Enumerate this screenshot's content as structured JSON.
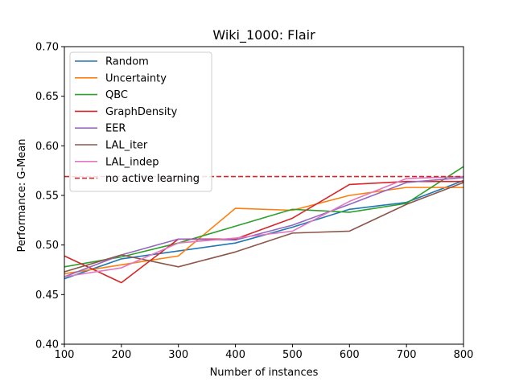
{
  "chart_data": {
    "type": "line",
    "title": "Wiki_1000: Flair",
    "xlabel": "Number of instances",
    "ylabel": "Performance: G-Mean",
    "xlim": [
      100,
      800
    ],
    "ylim": [
      0.4,
      0.7
    ],
    "xticks": [
      100,
      200,
      300,
      400,
      500,
      600,
      700,
      800
    ],
    "yticks": [
      0.4,
      0.45,
      0.5,
      0.55,
      0.6,
      0.65,
      0.7
    ],
    "ytick_labels": [
      "0.40",
      "0.45",
      "0.50",
      "0.55",
      "0.60",
      "0.65",
      "0.70"
    ],
    "grid": false,
    "legend_position": "upper-left",
    "x": [
      100,
      200,
      300,
      400,
      500,
      600,
      700,
      800
    ],
    "series": [
      {
        "name": "Random",
        "color": "#1f77b4",
        "values": [
          0.466,
          0.486,
          0.494,
          0.502,
          0.518,
          0.536,
          0.543,
          0.565
        ]
      },
      {
        "name": "Uncertainty",
        "color": "#ff7f0e",
        "values": [
          0.471,
          0.48,
          0.489,
          0.537,
          0.535,
          0.55,
          0.558,
          0.558
        ]
      },
      {
        "name": "QBC",
        "color": "#2ca02c",
        "values": [
          0.478,
          0.488,
          0.502,
          0.519,
          0.536,
          0.533,
          0.542,
          0.579
        ]
      },
      {
        "name": "GraphDensity",
        "color": "#d62728",
        "values": [
          0.489,
          0.462,
          0.506,
          0.506,
          0.527,
          0.561,
          0.564,
          0.564
        ]
      },
      {
        "name": "EER",
        "color": "#9467bd",
        "values": [
          0.468,
          0.49,
          0.506,
          0.505,
          0.52,
          0.541,
          0.563,
          0.568
        ]
      },
      {
        "name": "LAL_iter",
        "color": "#8c564b",
        "values": [
          0.473,
          0.49,
          0.478,
          0.493,
          0.512,
          0.514,
          0.541,
          0.563
        ]
      },
      {
        "name": "LAL_indep",
        "color": "#e377c2",
        "values": [
          0.468,
          0.477,
          0.502,
          0.507,
          0.514,
          0.544,
          0.567,
          0.569
        ]
      }
    ],
    "reference_line": {
      "name": "no active learning",
      "color": "#d62728",
      "value": 0.569,
      "style": "dashed"
    }
  }
}
